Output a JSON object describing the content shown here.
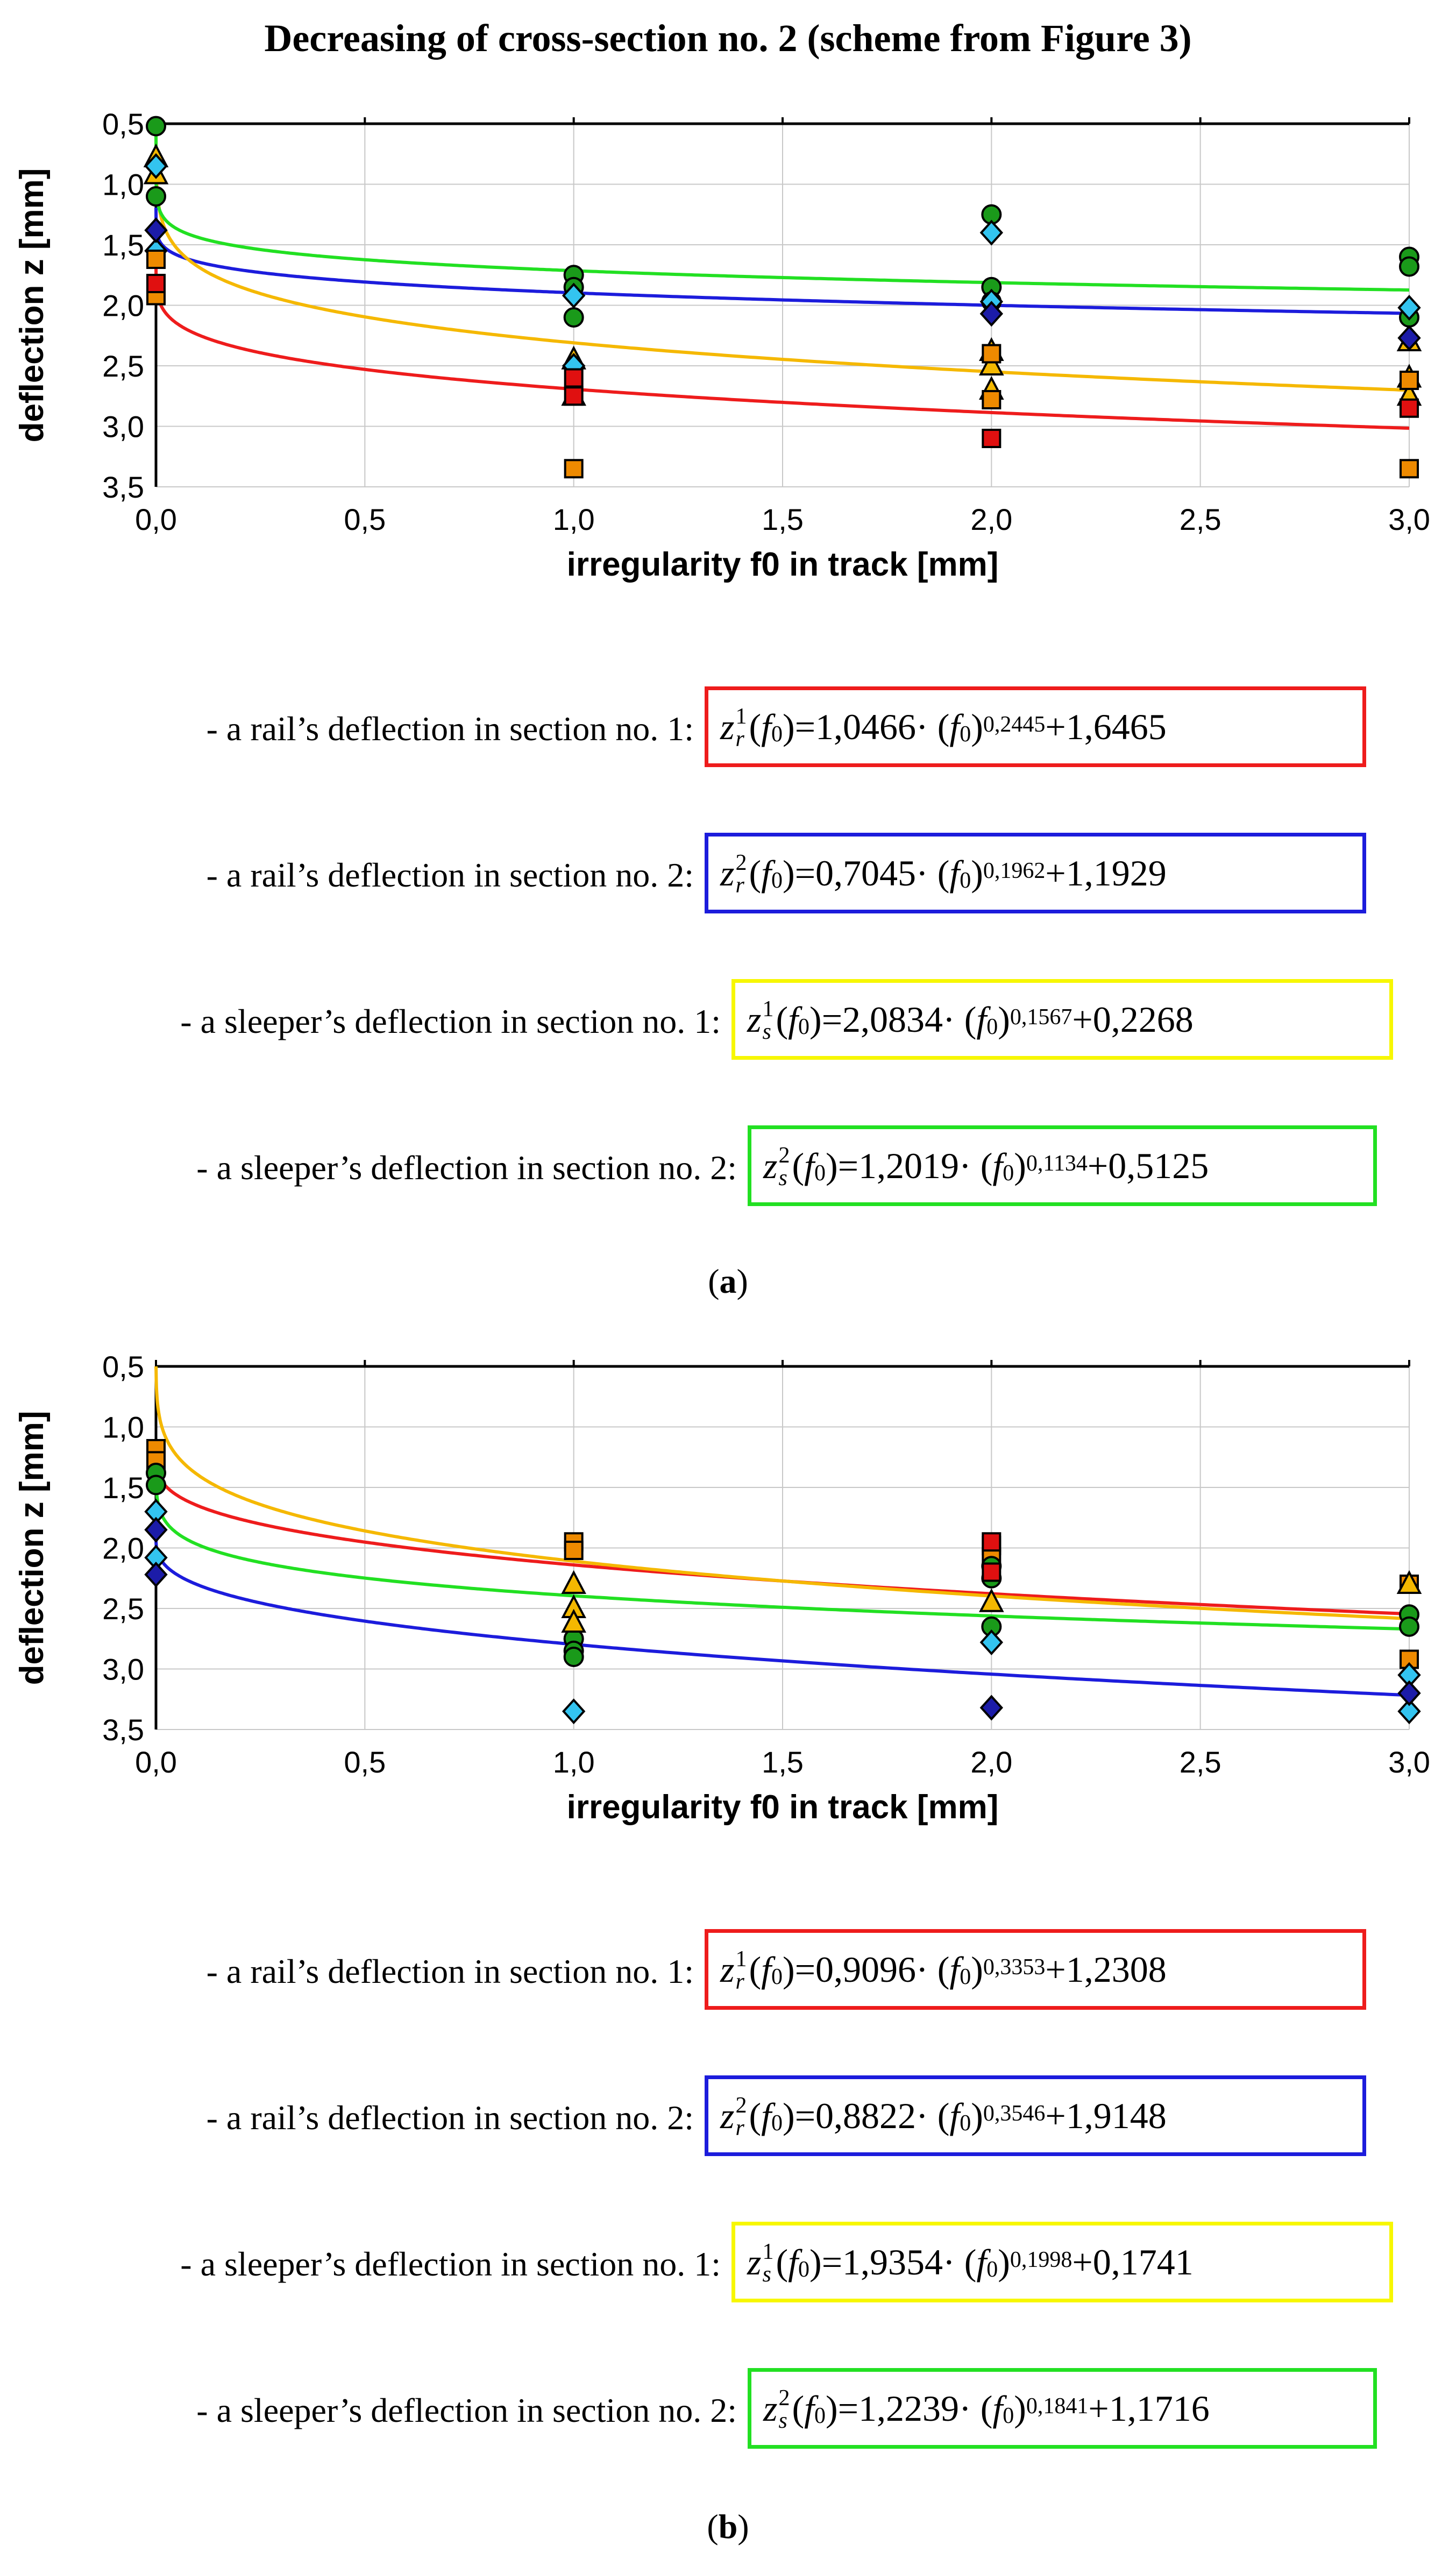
{
  "figure_title": "Decreasing of cross-section no. 2 (scheme from Figure 3)",
  "colors": {
    "rail_section_1": "#ee1c1c",
    "rail_section_2": "#1c1cdc",
    "sleeper_section_1": "#f5b800",
    "sleeper_section_2": "#22e022",
    "box_sleeper_1": "#f7f700",
    "marker_square": "#ee8a00",
    "marker_square_red": "#e01010",
    "marker_circle": "#1a9a1a",
    "marker_diamond_dark": "#1c1ca8",
    "marker_diamond_light": "#33c4f0",
    "marker_triangle": "#f4b800"
  },
  "chart_data": [
    {
      "panel": "a",
      "type": "scatter",
      "xlabel": "irregularity f0 in track [mm]",
      "ylabel": "deflection z [mm]",
      "xlim": [
        0,
        3
      ],
      "ylim": [
        0.5,
        3.5
      ],
      "y_inverted": true,
      "grid": true,
      "x_ticks": [
        "0,0",
        "0,5",
        "1,0",
        "1,5",
        "2,0",
        "2,5",
        "3,0"
      ],
      "y_ticks": [
        "0,5",
        "1,0",
        "1,5",
        "2,0",
        "2,5",
        "3,0",
        "3,5"
      ],
      "fits": [
        {
          "name": "rail_section_1",
          "a": 1.0466,
          "b": 0.2445,
          "c": 1.6465
        },
        {
          "name": "rail_section_2",
          "a": 0.7045,
          "b": 0.1962,
          "c": 1.1929
        },
        {
          "name": "sleeper_section_1",
          "a": 2.0834,
          "b": 0.1567,
          "c": 0.2268
        },
        {
          "name": "sleeper_section_2",
          "a": 1.2019,
          "b": 0.1134,
          "c": 0.5125
        }
      ],
      "points": [
        {
          "marker": "circle",
          "color": "marker_circle",
          "data": [
            [
              0,
              0.52
            ],
            [
              0,
              1.1
            ],
            [
              1,
              1.75
            ],
            [
              1,
              1.85
            ],
            [
              1,
              2.1
            ],
            [
              2,
              1.25
            ],
            [
              2,
              1.85
            ],
            [
              2,
              1.97
            ],
            [
              3,
              1.6
            ],
            [
              3,
              1.68
            ],
            [
              3,
              2.1
            ]
          ]
        },
        {
          "marker": "triangle",
          "color": "marker_triangle",
          "data": [
            [
              0,
              0.78
            ],
            [
              0,
              0.92
            ],
            [
              1,
              2.45
            ],
            [
              1,
              2.75
            ],
            [
              2,
              2.38
            ],
            [
              2,
              2.5
            ],
            [
              2,
              2.7
            ],
            [
              3,
              2.3
            ],
            [
              3,
              2.6
            ],
            [
              3,
              2.75
            ]
          ]
        },
        {
          "marker": "diamond",
          "color": "marker_diamond_light",
          "data": [
            [
              0,
              0.85
            ],
            [
              0,
              1.55
            ],
            [
              1,
              1.92
            ],
            [
              1,
              2.5
            ],
            [
              2,
              1.4
            ],
            [
              2,
              1.97
            ],
            [
              3,
              2.02
            ]
          ]
        },
        {
          "marker": "diamond",
          "color": "marker_diamond_dark",
          "data": [
            [
              0,
              1.38
            ],
            [
              2,
              2.07
            ],
            [
              3,
              2.27
            ]
          ]
        },
        {
          "marker": "square",
          "color": "marker_square",
          "data": [
            [
              0,
              1.62
            ],
            [
              0,
              1.92
            ],
            [
              1,
              3.35
            ],
            [
              2,
              2.4
            ],
            [
              2,
              2.78
            ],
            [
              3,
              2.62
            ],
            [
              3,
              3.35
            ]
          ]
        },
        {
          "marker": "square",
          "color": "marker_square_red",
          "data": [
            [
              0,
              1.82
            ],
            [
              1,
              2.6
            ],
            [
              1,
              2.75
            ],
            [
              2,
              3.1
            ],
            [
              3,
              2.85
            ]
          ]
        }
      ]
    },
    {
      "panel": "b",
      "type": "scatter",
      "xlabel": "irregularity f0 in track [mm]",
      "ylabel": "deflection z [mm]",
      "xlim": [
        0,
        3
      ],
      "ylim": [
        0.5,
        3.5
      ],
      "y_inverted": true,
      "grid": true,
      "x_ticks": [
        "0,0",
        "0,5",
        "1,0",
        "1,5",
        "2,0",
        "2,5",
        "3,0"
      ],
      "y_ticks": [
        "0,5",
        "1,0",
        "1,5",
        "2,0",
        "2,5",
        "3,0",
        "3,5"
      ],
      "fits": [
        {
          "name": "rail_section_1",
          "a": 0.9096,
          "b": 0.3353,
          "c": 1.2308
        },
        {
          "name": "rail_section_2",
          "a": 0.8822,
          "b": 0.3546,
          "c": 1.9148
        },
        {
          "name": "sleeper_section_1",
          "a": 1.9354,
          "b": 0.1998,
          "c": 0.1741
        },
        {
          "name": "sleeper_section_2",
          "a": 1.2239,
          "b": 0.1841,
          "c": 1.1716
        }
      ],
      "points": [
        {
          "marker": "square",
          "color": "marker_square",
          "data": [
            [
              0,
              1.18
            ],
            [
              0,
              1.28
            ],
            [
              1,
              1.95
            ],
            [
              1,
              2.02
            ],
            [
              2,
              1.98
            ],
            [
              2,
              2.08
            ],
            [
              3,
              2.3
            ],
            [
              3,
              2.92
            ]
          ]
        },
        {
          "marker": "circle",
          "color": "marker_circle",
          "data": [
            [
              0,
              1.38
            ],
            [
              0,
              1.48
            ],
            [
              1,
              2.75
            ],
            [
              1,
              2.85
            ],
            [
              1,
              2.9
            ],
            [
              2,
              2.15
            ],
            [
              2,
              2.25
            ],
            [
              2,
              2.65
            ],
            [
              3,
              2.55
            ],
            [
              3,
              2.65
            ]
          ]
        },
        {
          "marker": "diamond",
          "color": "marker_diamond_light",
          "data": [
            [
              0,
              1.7
            ],
            [
              0,
              2.08
            ],
            [
              1,
              3.35
            ],
            [
              2,
              2.78
            ],
            [
              3,
              3.05
            ],
            [
              3,
              3.35
            ]
          ]
        },
        {
          "marker": "diamond",
          "color": "marker_diamond_dark",
          "data": [
            [
              0,
              1.85
            ],
            [
              0,
              2.22
            ],
            [
              2,
              3.32
            ],
            [
              3,
              3.2
            ]
          ]
        },
        {
          "marker": "triangle",
          "color": "marker_triangle",
          "data": [
            [
              1,
              2.3
            ],
            [
              1,
              2.5
            ],
            [
              1,
              2.62
            ],
            [
              2,
              2.45
            ],
            [
              3,
              2.3
            ]
          ]
        },
        {
          "marker": "square",
          "color": "marker_square_red",
          "data": [
            [
              2,
              1.95
            ],
            [
              2,
              2.2
            ]
          ]
        }
      ]
    }
  ],
  "panels": [
    {
      "label": "a",
      "equations": [
        {
          "desc": "- a rail’s deflection in section no. 1:",
          "sym": "r",
          "sup": "1",
          "a": "1,0466",
          "exp": "0,2445",
          "c": "1,6465",
          "box_color": "rail_section_1"
        },
        {
          "desc": "- a rail’s deflection in section no. 2:",
          "sym": "r",
          "sup": "2",
          "a": "0,7045",
          "exp": "0,1962",
          "c": "1,1929",
          "box_color": "rail_section_2"
        },
        {
          "desc": "- a sleeper’s deflection in section no. 1:",
          "sym": "s",
          "sup": "1",
          "a": "2,0834",
          "exp": "0,1567",
          "c": "0,2268",
          "box_color": "box_sleeper_1"
        },
        {
          "desc": "- a sleeper’s deflection in section no. 2:",
          "sym": "s",
          "sup": "2",
          "a": "1,2019",
          "exp": "0,1134",
          "c": "0,5125",
          "box_color": "sleeper_section_2"
        }
      ]
    },
    {
      "label": "b",
      "equations": [
        {
          "desc": "- a rail’s deflection in section no. 1:",
          "sym": "r",
          "sup": "1",
          "a": "0,9096",
          "exp": "0,3353",
          "c": "1,2308",
          "box_color": "rail_section_1"
        },
        {
          "desc": "- a rail’s deflection in section no. 2:",
          "sym": "r",
          "sup": "2",
          "a": "0,8822",
          "exp": "0,3546",
          "c": "1,9148",
          "box_color": "rail_section_2"
        },
        {
          "desc": "- a sleeper’s deflection in section no. 1:",
          "sym": "s",
          "sup": "1",
          "a": "1,9354",
          "exp": "0,1998",
          "c": "0,1741",
          "box_color": "box_sleeper_1"
        },
        {
          "desc": "- a sleeper’s deflection in section no. 2:",
          "sym": "s",
          "sup": "2",
          "a": "1,2239",
          "exp": "0,1841",
          "c": "1,1716",
          "box_color": "sleeper_section_2"
        }
      ]
    }
  ],
  "equation_parts": {
    "f_arg": "(f",
    "f_sub": "0",
    "f_close": ")",
    "equals": " = ",
    "dot": " · (f",
    "plus": " + "
  }
}
